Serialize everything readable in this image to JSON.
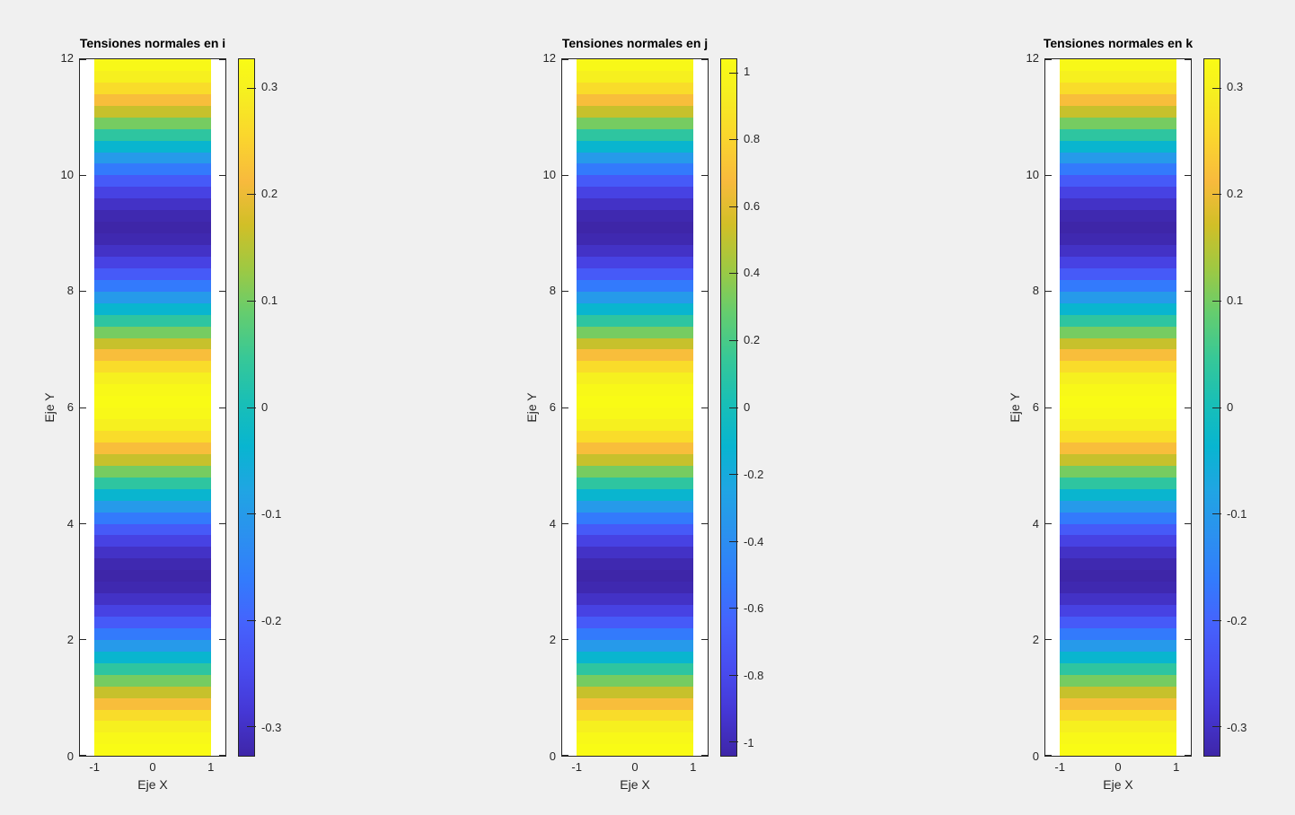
{
  "figure": {
    "background": "#f0f0f0",
    "axes_background": "#ffffff",
    "spine_color": "#262626",
    "title_color": "#000000",
    "label_color": "#262626"
  },
  "subplots": [
    {
      "title": "Tensiones normales en i",
      "xlabel": "Eje X",
      "ylabel": "Eje Y",
      "x_tick_labels": [
        "-1",
        "0",
        "1"
      ],
      "y_tick_labels": [
        "0",
        "2",
        "4",
        "6",
        "8",
        "10",
        "12"
      ],
      "colorbar_tick_labels": [
        "0.3",
        "0.2",
        "0.1",
        "0",
        "-0.1",
        "-0.2",
        "-0.3"
      ]
    },
    {
      "title": "Tensiones normales en j",
      "xlabel": "Eje X",
      "ylabel": "Eje Y",
      "x_tick_labels": [
        "-1",
        "0",
        "1"
      ],
      "y_tick_labels": [
        "0",
        "2",
        "4",
        "6",
        "8",
        "10",
        "12"
      ],
      "colorbar_tick_labels": [
        "1",
        "0.8",
        "0.6",
        "0.4",
        "0.2",
        "0",
        "-0.2",
        "-0.4",
        "-0.6",
        "-0.8",
        "-1"
      ]
    },
    {
      "title": "Tensiones normales en k",
      "xlabel": "Eje X",
      "ylabel": "Eje Y",
      "x_tick_labels": [
        "-1",
        "0",
        "1"
      ],
      "y_tick_labels": [
        "0",
        "2",
        "4",
        "6",
        "8",
        "10",
        "12"
      ],
      "colorbar_tick_labels": [
        "0.3",
        "0.2",
        "0.1",
        "0",
        "-0.1",
        "-0.2",
        "-0.3"
      ]
    }
  ],
  "chart_data": {
    "type": "heatmap",
    "colormap": "parula",
    "x_range": [
      -1,
      1
    ],
    "xlim": [
      -1.25,
      1.25
    ],
    "y_range": [
      0,
      12
    ],
    "x_ticks": [
      -1,
      0,
      1
    ],
    "y_ticks": [
      0,
      2,
      4,
      6,
      8,
      10,
      12
    ],
    "cell_dy": 0.2,
    "profile": "value(y) = amplitude * cos(pi*y/3), flat-shaded per 0.2-unit cell",
    "normalized_band_values_bottom_to_top": [
      1,
      0.978,
      0.914,
      0.809,
      0.669,
      0.5,
      0.309,
      0.105,
      -0.105,
      -0.309,
      -0.5,
      -0.669,
      -0.809,
      -0.914,
      -0.978,
      -1,
      -0.978,
      -0.914,
      -0.809,
      -0.669,
      -0.5,
      -0.309,
      -0.105,
      0.105,
      0.309,
      0.5,
      0.669,
      0.809,
      0.914,
      0.978,
      1,
      0.978,
      0.914,
      0.809,
      0.669,
      0.5,
      0.309,
      0.105,
      -0.105,
      -0.309,
      -0.5,
      -0.669,
      -0.809,
      -0.914,
      -0.978,
      -1,
      -0.978,
      -0.914,
      -0.809,
      -0.669,
      -0.5,
      -0.309,
      -0.105,
      0.105,
      0.309,
      0.5,
      0.669,
      0.809,
      0.914,
      0.978
    ],
    "series": [
      {
        "name": "Tensiones normales en i",
        "amplitude": 0.327,
        "clim": [
          -0.327,
          0.327
        ],
        "colorbar_ticks": [
          0.3,
          0.2,
          0.1,
          0,
          -0.1,
          -0.2,
          -0.3
        ]
      },
      {
        "name": "Tensiones normales en j",
        "amplitude": 1.04,
        "clim": [
          -1.04,
          1.04
        ],
        "colorbar_ticks": [
          1,
          0.8,
          0.6,
          0.4,
          0.2,
          0,
          -0.2,
          -0.4,
          -0.6,
          -0.8,
          -1
        ]
      },
      {
        "name": "Tensiones normales en k",
        "amplitude": 0.327,
        "clim": [
          -0.327,
          0.327
        ],
        "colorbar_ticks": [
          0.3,
          0.2,
          0.1,
          0,
          -0.1,
          -0.2,
          -0.3
        ]
      }
    ],
    "colormap_stops": [
      [
        0.0,
        "#3e26a8"
      ],
      [
        0.0635,
        "#4537d5"
      ],
      [
        0.127,
        "#484df0"
      ],
      [
        0.1905,
        "#4563fd"
      ],
      [
        0.254,
        "#327cfc"
      ],
      [
        0.3175,
        "#2b91ef"
      ],
      [
        0.381,
        "#20a5e3"
      ],
      [
        0.4444,
        "#08b5d0"
      ],
      [
        0.5079,
        "#19bfb6"
      ],
      [
        0.5714,
        "#37c897"
      ],
      [
        0.6349,
        "#64cd6f"
      ],
      [
        0.6984,
        "#9dc943"
      ],
      [
        0.7619,
        "#d1bf27"
      ],
      [
        0.8254,
        "#f8ba3d"
      ],
      [
        0.8889,
        "#fad62d"
      ],
      [
        0.9524,
        "#f6ef20"
      ],
      [
        1.0,
        "#f9fb15"
      ]
    ]
  }
}
